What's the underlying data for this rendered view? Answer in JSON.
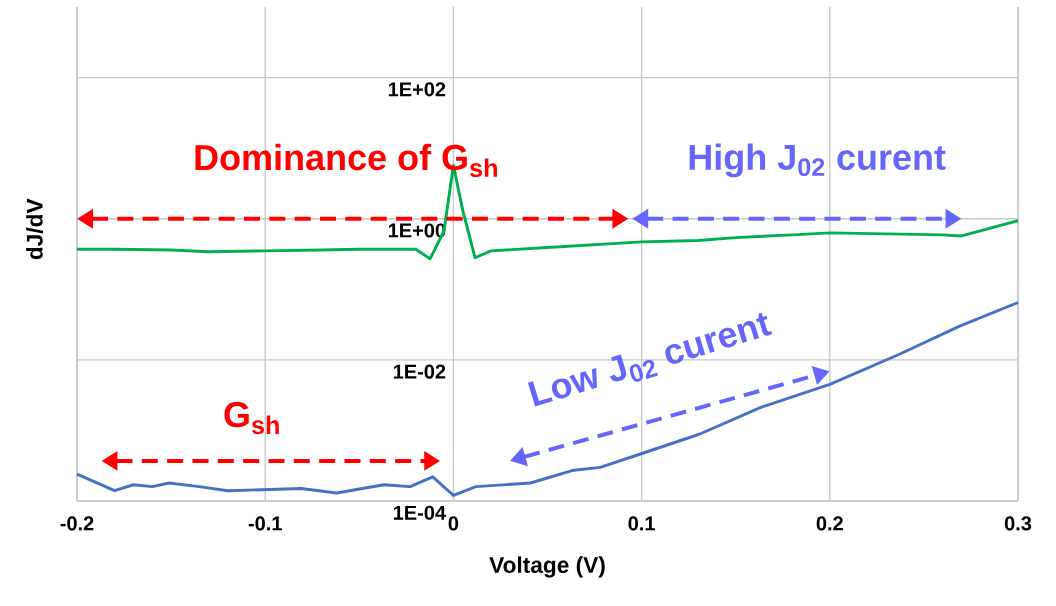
{
  "chart_data": {
    "type": "line",
    "xlabel": "Voltage (V)",
    "ylabel": "dJ/dV",
    "log": "y",
    "grid": true,
    "xlim": [
      -0.2,
      0.3
    ],
    "ylim": [
      0.0001,
      1000
    ],
    "xticks": [
      -0.2,
      -0.1,
      0,
      0.1,
      0.2,
      0.3
    ],
    "yticks": [
      {
        "value": 0.0001,
        "label": "1E-04"
      },
      {
        "value": 0.01,
        "label": "1E-02"
      },
      {
        "value": 1,
        "label": "1E+00"
      },
      {
        "value": 100,
        "label": "1E+02"
      }
    ],
    "series": [
      {
        "color": "#00b050",
        "x": [
          -0.2,
          -0.18,
          -0.15,
          -0.13,
          -0.1,
          -0.07,
          -0.05,
          -0.03,
          -0.02,
          -0.0124,
          -0.005,
          0,
          0.005,
          0.0115,
          0.02,
          0.05,
          0.1,
          0.13,
          0.15,
          0.18,
          0.2,
          0.23,
          0.26,
          0.27,
          0.3
        ],
        "values": [
          0.37,
          0.37,
          0.36,
          0.34,
          0.35,
          0.36,
          0.37,
          0.37,
          0.37,
          0.27,
          0.67,
          5.7,
          1.3,
          0.28,
          0.35,
          0.39,
          0.47,
          0.49,
          0.54,
          0.59,
          0.63,
          0.61,
          0.59,
          0.57,
          0.94
        ]
      },
      {
        "color": "#4472c4",
        "x": [
          -0.2,
          -0.18,
          -0.17,
          -0.16,
          -0.151,
          -0.135,
          -0.12,
          -0.081,
          -0.062,
          -0.037,
          -0.023,
          -0.011,
          0,
          0.012,
          0.041,
          0.063,
          0.078,
          0.099,
          0.131,
          0.163,
          0.2,
          0.237,
          0.269,
          0.3
        ],
        "values": [
          0.00024,
          0.00014,
          0.00017,
          0.00016,
          0.00018,
          0.00016,
          0.00014,
          0.00015,
          0.00013,
          0.00017,
          0.00016,
          0.00022,
          0.00012,
          0.00016,
          0.00018,
          0.00027,
          0.0003,
          0.00046,
          0.00089,
          0.0021,
          0.0045,
          0.012,
          0.03,
          0.065
        ]
      }
    ],
    "annotations": [
      "Dominance of G$_{sh}$",
      "High J$_{02}$ curent",
      "G$_{sh}$",
      "Low J$_{02}$ curent"
    ]
  }
}
